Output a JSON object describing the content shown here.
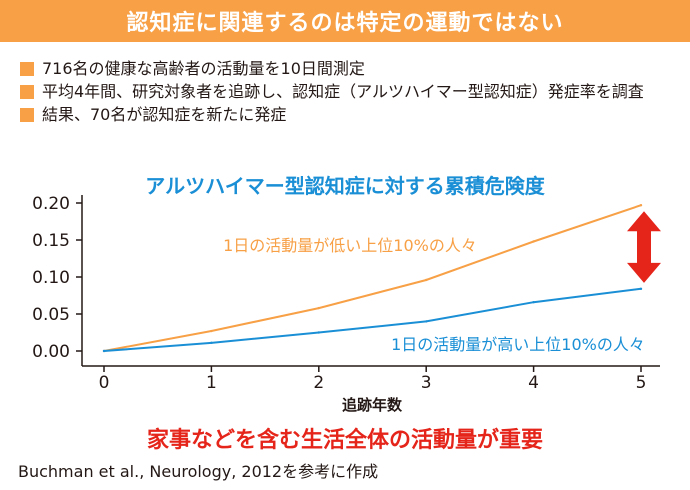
{
  "banner": {
    "title": "認知症に関連するのは特定の運動ではない"
  },
  "bullets": [
    "716名の健康な高齢者の活動量を10日間測定",
    "平均4年間、研究対象者を追跡し、認知症（アルツハイマー型認知症）発症率を調査",
    "結果、70名が認知症を新たに発症"
  ],
  "bottom_message": "家事などを含む生活全体の活動量が重要",
  "citation": "Buchman et al., Neurology, 2012を参考に作成",
  "colors": {
    "banner": "#f7a046",
    "low_activity": "#f7a046",
    "high_activity": "#1a8fd6",
    "arrow": "#e5241a",
    "title": "#1a8fd6",
    "message": "#e5241a"
  },
  "icons": {
    "gap_marker": "double-headed-arrow-icon"
  },
  "chart_data": {
    "type": "line",
    "title": "アルツハイマー型認知症に対する累積危険度",
    "xlabel": "追跡年数",
    "ylabel": "",
    "x": [
      0,
      1,
      2,
      3,
      4,
      5
    ],
    "xlim": [
      0,
      5
    ],
    "ylim": [
      0,
      0.2
    ],
    "xticks": [
      "0",
      "1",
      "2",
      "3",
      "4",
      "5"
    ],
    "yticks": [
      "0.00",
      "0.05",
      "0.10",
      "0.15",
      "0.20"
    ],
    "grid": false,
    "series": [
      {
        "name": "1日の活動量が低い上位10%の人々",
        "color": "#f7a046",
        "values": [
          0.0,
          0.027,
          0.058,
          0.096,
          0.148,
          0.197
        ]
      },
      {
        "name": "1日の活動量が高い上位10%の人々",
        "color": "#1a8fd6",
        "values": [
          0.0,
          0.011,
          0.025,
          0.04,
          0.066,
          0.084
        ]
      }
    ]
  }
}
